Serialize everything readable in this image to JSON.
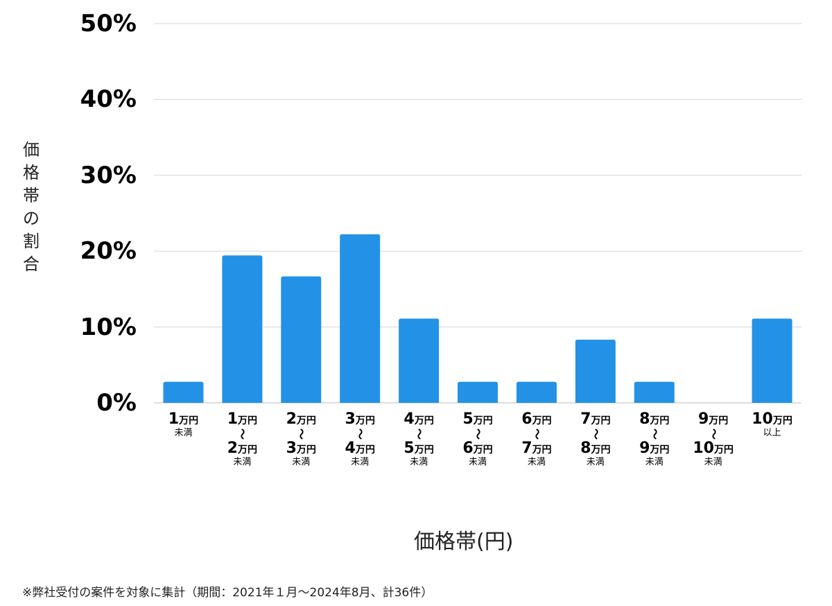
{
  "chart_data": {
    "type": "bar",
    "title": "",
    "xlabel": "価格帯(円)",
    "ylabel": "価格帯の割合",
    "ylim": [
      0,
      50
    ],
    "yticks": [
      "0%",
      "10%",
      "20%",
      "30%",
      "40%",
      "50%"
    ],
    "grid": true,
    "bar_color": "#2392e6",
    "categories": [
      {
        "from": "1",
        "from_unit": "万円",
        "to": "",
        "to_unit": "",
        "suffix": "未満"
      },
      {
        "from": "1",
        "from_unit": "万円",
        "to": "2",
        "to_unit": "万円",
        "suffix": "未満"
      },
      {
        "from": "2",
        "from_unit": "万円",
        "to": "3",
        "to_unit": "万円",
        "suffix": "未満"
      },
      {
        "from": "3",
        "from_unit": "万円",
        "to": "4",
        "to_unit": "万円",
        "suffix": "未満"
      },
      {
        "from": "4",
        "from_unit": "万円",
        "to": "5",
        "to_unit": "万円",
        "suffix": "未満"
      },
      {
        "from": "5",
        "from_unit": "万円",
        "to": "6",
        "to_unit": "万円",
        "suffix": "未満"
      },
      {
        "from": "6",
        "from_unit": "万円",
        "to": "7",
        "to_unit": "万円",
        "suffix": "未満"
      },
      {
        "from": "7",
        "from_unit": "万円",
        "to": "8",
        "to_unit": "万円",
        "suffix": "未満"
      },
      {
        "from": "8",
        "from_unit": "万円",
        "to": "9",
        "to_unit": "万円",
        "suffix": "未満"
      },
      {
        "from": "9",
        "from_unit": "万円",
        "to": "10",
        "to_unit": "万円",
        "suffix": "未満"
      },
      {
        "from": "10",
        "from_unit": "万円",
        "to": "",
        "to_unit": "",
        "suffix": "以上"
      }
    ],
    "range_mark": "〜",
    "values": [
      2.78,
      19.44,
      16.67,
      22.22,
      11.11,
      2.78,
      2.78,
      8.33,
      2.78,
      0,
      11.11
    ]
  },
  "note": "※弊社受付の案件を対象に集計（期間：2021年１月〜2024年8月、計36件）"
}
